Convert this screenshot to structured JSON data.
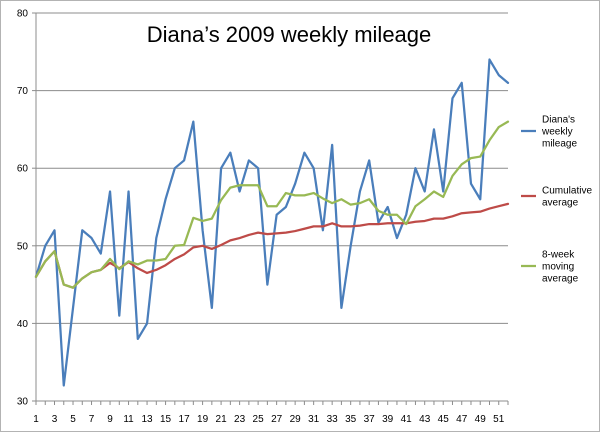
{
  "chart_data": {
    "type": "line",
    "title": "Diana’s 2009 weekly mileage",
    "xlabel": "",
    "ylabel": "",
    "ylim": [
      30,
      80
    ],
    "yticks": [
      30,
      40,
      50,
      60,
      70,
      80
    ],
    "xlim": [
      1,
      52
    ],
    "xticks": [
      1,
      3,
      5,
      7,
      9,
      11,
      13,
      15,
      17,
      19,
      21,
      23,
      25,
      27,
      29,
      31,
      33,
      35,
      37,
      39,
      41,
      43,
      45,
      47,
      49,
      51
    ],
    "grid": "horizontal",
    "legend_position": "right",
    "x": [
      1,
      2,
      3,
      4,
      5,
      6,
      7,
      8,
      9,
      10,
      11,
      12,
      13,
      14,
      15,
      16,
      17,
      18,
      19,
      20,
      21,
      22,
      23,
      24,
      25,
      26,
      27,
      28,
      29,
      30,
      31,
      32,
      33,
      34,
      35,
      36,
      37,
      38,
      39,
      40,
      41,
      42,
      43,
      44,
      45,
      46,
      47,
      48,
      49,
      50,
      51,
      52
    ],
    "series": [
      {
        "name": "Diana's weekly mileage",
        "legend_lines": [
          "Diana's",
          "weekly",
          "mileage"
        ],
        "color": "#4a7ebb",
        "values": [
          46,
          50,
          52,
          32,
          42,
          52,
          51,
          49,
          57,
          41,
          57,
          38,
          40,
          51,
          56,
          60,
          61,
          66,
          52,
          42,
          60,
          62,
          57,
          61,
          60,
          45,
          54,
          55,
          58,
          62,
          60,
          52,
          63,
          42,
          50,
          57,
          61,
          53,
          55,
          51,
          54,
          60,
          57,
          65,
          57,
          69,
          71,
          58,
          56,
          74,
          72,
          71
        ]
      },
      {
        "name": "Cumulative average",
        "legend_lines": [
          "Cumulative",
          "average"
        ],
        "color": "#be4b48",
        "values": [
          46,
          48,
          49.3,
          45,
          44.6,
          45.8,
          46.6,
          46.9,
          47.8,
          47.1,
          47.9,
          47.1,
          46.5,
          46.9,
          47.5,
          48.3,
          48.9,
          49.8,
          50,
          49.6,
          50.1,
          50.7,
          51,
          51.4,
          51.7,
          51.5,
          51.6,
          51.7,
          51.9,
          52.2,
          52.5,
          52.5,
          52.9,
          52.5,
          52.5,
          52.6,
          52.8,
          52.8,
          52.9,
          52.9,
          52.9,
          53.1,
          53.2,
          53.5,
          53.5,
          53.8,
          54.2,
          54.3,
          54.4,
          54.8,
          55.1,
          55.4
        ]
      },
      {
        "name": "8-week moving average",
        "legend_lines": [
          "8-week",
          "moving",
          "average"
        ],
        "color": "#98b954",
        "values": [
          46,
          48,
          49.3,
          45,
          44.6,
          45.8,
          46.6,
          46.9,
          48.3,
          47,
          48,
          47.6,
          48.1,
          48.1,
          48.3,
          50,
          50.1,
          53.6,
          53.2,
          53.5,
          55.9,
          57.5,
          57.8,
          57.8,
          57.8,
          55.1,
          55.1,
          56.8,
          56.5,
          56.5,
          56.8,
          56.1,
          55.5,
          56,
          55.3,
          55.5,
          56,
          54.5,
          54,
          54,
          52.8,
          55.1,
          56,
          57,
          56.3,
          59,
          60.5,
          61.3,
          61.5,
          63.6,
          65.3,
          66
        ]
      }
    ]
  }
}
